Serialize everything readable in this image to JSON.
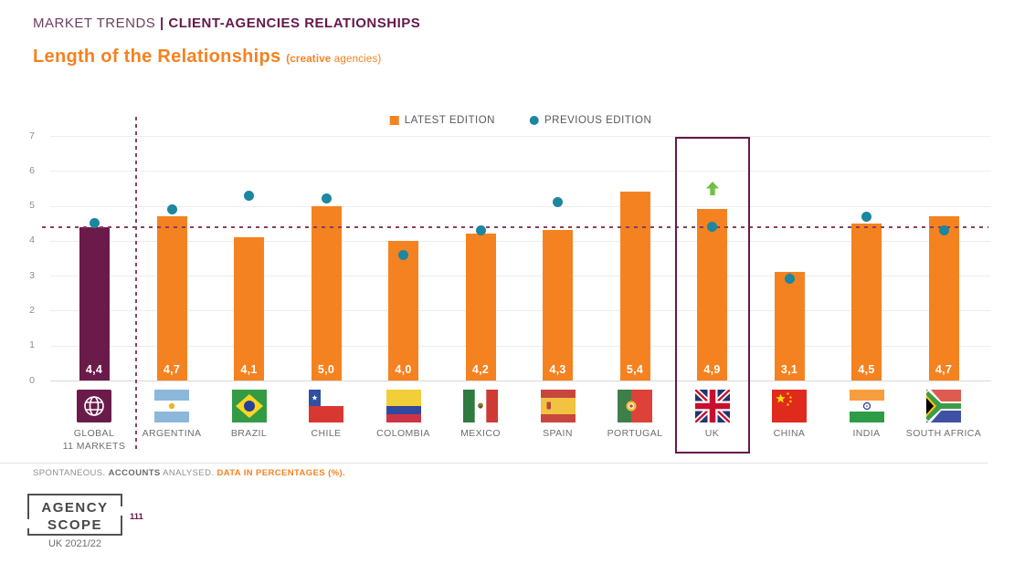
{
  "header": {
    "section": "MARKET TRENDS",
    "divider": "|",
    "title": "CLIENT-AGENCIES RELATIONSHIPS"
  },
  "title": {
    "main": "Length of the Relationships",
    "subtitle_bold": "(creative",
    "subtitle_rest": " agencies)"
  },
  "legend": {
    "latest": "LATEST EDITION",
    "previous": "PREVIOUS EDITION"
  },
  "colors": {
    "orange": "#F58220",
    "maroon": "#65194A",
    "global_bar": "#6A1B4A",
    "teal": "#1B87A0",
    "green_arrow": "#72BF44",
    "avg_line": "#8B3D5E",
    "grid": "#EDEDED"
  },
  "chart_data": {
    "type": "bar",
    "title": "Length of the Relationships (creative agencies)",
    "xlabel": "",
    "ylabel": "",
    "ylim": [
      0,
      7
    ],
    "yticks": [
      0,
      1,
      2,
      3,
      4,
      5,
      6,
      7
    ],
    "grid": true,
    "legend_position": "top",
    "average_line": 4.4,
    "categories": [
      "GLOBAL\n11 MARKETS",
      "ARGENTINA",
      "BRAZIL",
      "CHILE",
      "COLOMBIA",
      "MEXICO",
      "SPAIN",
      "PORTUGAL",
      "UK",
      "CHINA",
      "INDIA",
      "SOUTH AFRICA"
    ],
    "flags": [
      "global",
      "argentina",
      "brazil",
      "chile",
      "colombia",
      "mexico",
      "spain",
      "portugal",
      "uk",
      "china",
      "india",
      "south-africa"
    ],
    "series": [
      {
        "name": "LATEST EDITION",
        "type": "bar",
        "values": [
          4.4,
          4.7,
          4.1,
          5.0,
          4.0,
          4.2,
          4.3,
          5.4,
          4.9,
          3.1,
          4.5,
          4.7
        ],
        "labels": [
          "4,4",
          "4,7",
          "4,1",
          "5,0",
          "4,0",
          "4,2",
          "4,3",
          "5,4",
          "4,9",
          "3,1",
          "4,5",
          "4,7"
        ],
        "colors": [
          "#6A1B4A",
          "#F58220",
          "#F58220",
          "#F58220",
          "#F58220",
          "#F58220",
          "#F58220",
          "#F58220",
          "#F58220",
          "#F58220",
          "#F58220",
          "#F58220"
        ]
      },
      {
        "name": "PREVIOUS EDITION",
        "type": "point",
        "color": "#1B87A0",
        "values": [
          4.5,
          4.9,
          5.3,
          5.2,
          3.6,
          4.3,
          5.1,
          null,
          4.4,
          2.9,
          4.7,
          4.3
        ]
      }
    ],
    "highlight_category": "UK",
    "highlight_index": 8,
    "annotations": [
      {
        "category": "UK",
        "index": 8,
        "symbol": "up-arrow",
        "color": "#72BF44"
      }
    ]
  },
  "footnote": {
    "lead": "SPONTANEOUS. ",
    "bold": "ACCOUNTS",
    "mid": " ANALYSED. ",
    "highlight": "DATA IN PERCENTAGES (%)."
  },
  "logo": {
    "line1": "AGENCY",
    "line2": "SCOPE",
    "edition": "UK 2021/22",
    "page": "111"
  }
}
